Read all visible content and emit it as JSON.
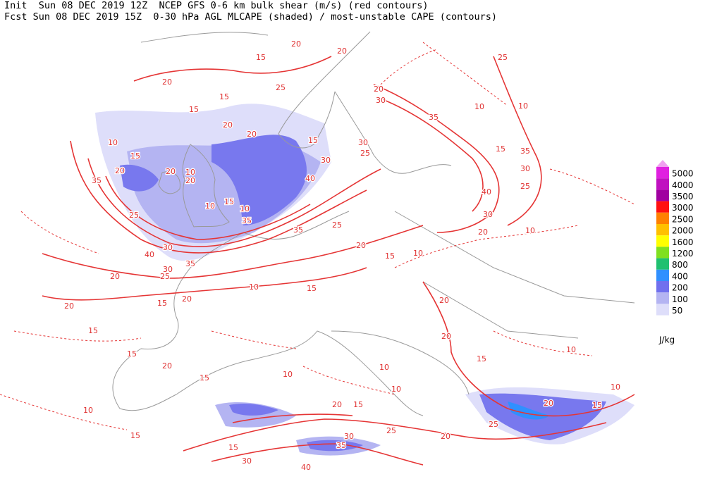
{
  "header": {
    "line1": "Init  Sun 08 DEC 2019 12Z  NCEP GFS 0-6 km bulk shear (m/s) (red contours)",
    "line2": "Fcst Sun 08 DEC 2019 15Z  0-30 hPa AGL MLCAPE (shaded) / most-unstable CAPE (contours)"
  },
  "legend": {
    "levels": [
      5000,
      4000,
      3500,
      3000,
      2500,
      2000,
      1600,
      1200,
      800,
      400,
      200,
      100,
      50
    ],
    "colors": [
      "#e020e0",
      "#c010c0",
      "#a000a0",
      "#ff1010",
      "#ff8000",
      "#ffc000",
      "#ffff00",
      "#80e020",
      "#20c070",
      "#3090ff",
      "#7070ee",
      "#b4b4f2",
      "#dedefa"
    ],
    "units": "J/kg"
  },
  "contour_labels": [
    "15",
    "20",
    "20",
    "20",
    "25",
    "15",
    "15",
    "20",
    "30",
    "35",
    "25",
    "10",
    "10",
    "35",
    "15",
    "30",
    "25",
    "40",
    "30",
    "20",
    "10",
    "10",
    "15",
    "20",
    "35",
    "25",
    "40",
    "30",
    "30",
    "35",
    "20",
    "25",
    "20",
    "20",
    "15",
    "15",
    "15",
    "20",
    "15",
    "10",
    "15",
    "15",
    "30",
    "40",
    "30",
    "35",
    "20",
    "15",
    "25",
    "20",
    "25",
    "20",
    "15",
    "10",
    "10",
    "15",
    "20",
    "20",
    "10",
    "10",
    "10",
    "15",
    "10",
    "35",
    "25",
    "20",
    "15",
    "10",
    "10",
    "35",
    "15",
    "10",
    "20",
    "10",
    "20",
    "30",
    "40",
    "15",
    "20",
    "20",
    "25",
    "30"
  ]
}
